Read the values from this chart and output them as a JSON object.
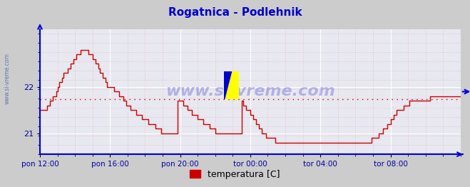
{
  "title": "Rogatnica - Podlehnik",
  "title_color": "#0000cc",
  "title_fontsize": 11,
  "bg_color": "#cccccc",
  "plot_bg_color": "#e8e8f0",
  "grid_color": "#ffffff",
  "grid_minor_color": "#ddaaaa",
  "line_color": "#cc0000",
  "line_width": 1.0,
  "avg_value": 21.73,
  "avg_line_color": "#cc0000",
  "axis_color": "#0000dd",
  "tick_color": "#0000aa",
  "watermark": "www.si-vreme.com",
  "watermark_color": "#3333cc",
  "legend_label": "temperatura [C]",
  "legend_color": "#cc0000",
  "ylim_min": 20.55,
  "ylim_max": 23.25,
  "yticks": [
    21,
    22
  ],
  "xtick_labels": [
    "pon 12:00",
    "pon 16:00",
    "pon 20:00",
    "tor 00:00",
    "tor 04:00",
    "tor 08:00"
  ],
  "xtick_positions": [
    0,
    48,
    96,
    144,
    192,
    240
  ],
  "total_points": 289,
  "temperature_data": [
    21.5,
    21.5,
    21.5,
    21.5,
    21.5,
    21.6,
    21.6,
    21.7,
    21.7,
    21.8,
    21.8,
    21.9,
    22.0,
    22.1,
    22.1,
    22.2,
    22.3,
    22.3,
    22.3,
    22.4,
    22.4,
    22.5,
    22.5,
    22.6,
    22.6,
    22.7,
    22.7,
    22.7,
    22.8,
    22.8,
    22.8,
    22.8,
    22.8,
    22.7,
    22.7,
    22.7,
    22.6,
    22.6,
    22.5,
    22.5,
    22.4,
    22.3,
    22.3,
    22.2,
    22.2,
    22.1,
    22.0,
    22.0,
    22.0,
    22.0,
    22.0,
    21.9,
    21.9,
    21.9,
    21.8,
    21.8,
    21.8,
    21.7,
    21.7,
    21.6,
    21.6,
    21.6,
    21.5,
    21.5,
    21.5,
    21.5,
    21.4,
    21.4,
    21.4,
    21.4,
    21.3,
    21.3,
    21.3,
    21.3,
    21.2,
    21.2,
    21.2,
    21.2,
    21.2,
    21.1,
    21.1,
    21.1,
    21.1,
    21.0,
    21.0,
    21.0,
    21.0,
    21.0,
    21.0,
    21.0,
    21.0,
    21.0,
    21.0,
    21.0,
    21.7,
    21.7,
    21.7,
    21.7,
    21.6,
    21.6,
    21.6,
    21.5,
    21.5,
    21.5,
    21.4,
    21.4,
    21.4,
    21.4,
    21.3,
    21.3,
    21.3,
    21.3,
    21.2,
    21.2,
    21.2,
    21.2,
    21.1,
    21.1,
    21.1,
    21.1,
    21.0,
    21.0,
    21.0,
    21.0,
    21.0,
    21.0,
    21.0,
    21.0,
    21.0,
    21.0,
    21.0,
    21.0,
    21.0,
    21.0,
    21.0,
    21.0,
    21.0,
    21.0,
    21.7,
    21.6,
    21.6,
    21.5,
    21.5,
    21.5,
    21.4,
    21.4,
    21.3,
    21.3,
    21.2,
    21.2,
    21.1,
    21.1,
    21.0,
    21.0,
    21.0,
    20.9,
    20.9,
    20.9,
    20.9,
    20.9,
    20.9,
    20.8,
    20.8,
    20.8,
    20.8,
    20.8,
    20.8,
    20.8,
    20.8,
    20.8,
    20.8,
    20.8,
    20.8,
    20.8,
    20.8,
    20.8,
    20.8,
    20.8,
    20.8,
    20.8,
    20.8,
    20.8,
    20.8,
    20.8,
    20.8,
    20.8,
    20.8,
    20.8,
    20.8,
    20.8,
    20.8,
    20.8,
    20.8,
    20.8,
    20.8,
    20.8,
    20.8,
    20.8,
    20.8,
    20.8,
    20.8,
    20.8,
    20.8,
    20.8,
    20.8,
    20.8,
    20.8,
    20.8,
    20.8,
    20.8,
    20.8,
    20.8,
    20.8,
    20.8,
    20.8,
    20.8,
    20.8,
    20.8,
    20.8,
    20.8,
    20.8,
    20.8,
    20.8,
    20.8,
    20.8,
    20.8,
    20.8,
    20.9,
    20.9,
    20.9,
    20.9,
    20.9,
    21.0,
    21.0,
    21.0,
    21.1,
    21.1,
    21.1,
    21.2,
    21.2,
    21.3,
    21.3,
    21.4,
    21.4,
    21.5,
    21.5,
    21.5,
    21.5,
    21.5,
    21.6,
    21.6,
    21.6,
    21.6,
    21.7,
    21.7,
    21.7,
    21.7,
    21.7,
    21.7,
    21.7,
    21.7,
    21.7,
    21.7,
    21.7,
    21.7,
    21.7,
    21.7,
    21.8,
    21.8,
    21.8,
    21.8,
    21.8,
    21.8,
    21.8,
    21.8,
    21.8,
    21.8,
    21.8,
    21.8,
    21.8,
    21.8,
    21.8,
    21.8,
    21.8,
    21.8,
    21.8,
    21.8,
    21.8,
    21.8,
    21.8,
    21.8,
    21.9,
    21.9,
    21.9,
    21.9
  ]
}
